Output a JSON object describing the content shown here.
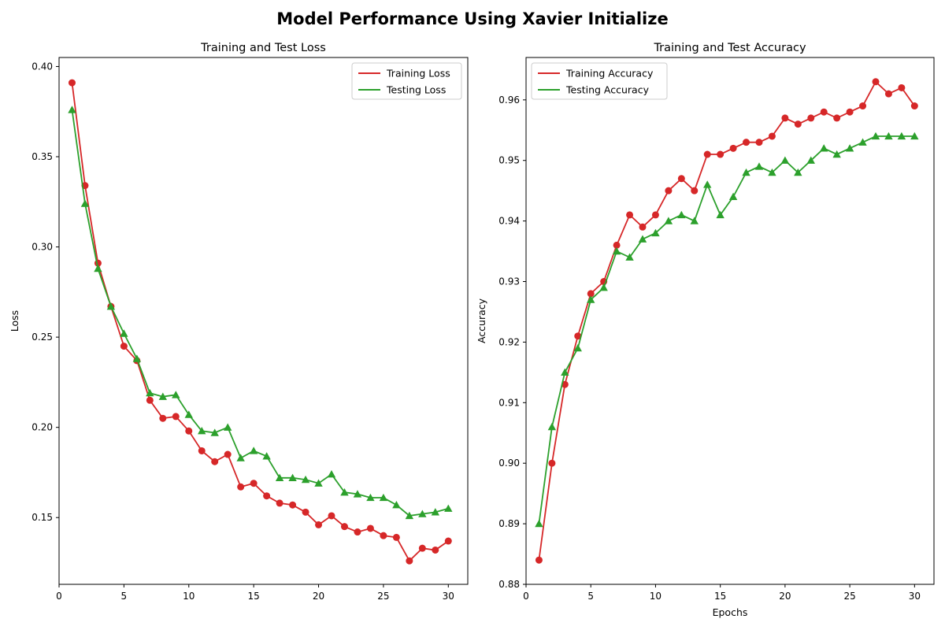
{
  "figure": {
    "title": "Model Performance Using Xavier Initialize"
  },
  "colors": {
    "training": "#d62728",
    "testing": "#2ca02c"
  },
  "chart_data": [
    {
      "type": "line",
      "title": "Training and Test Loss",
      "xlabel": "",
      "ylabel": "Loss",
      "xlim": [
        0,
        31.5
      ],
      "ylim": [
        0.113,
        0.405
      ],
      "xticks": [
        0,
        5,
        10,
        15,
        20,
        25,
        30
      ],
      "yticks": [
        0.15,
        0.2,
        0.25,
        0.3,
        0.35,
        0.4
      ],
      "ytick_labels": [
        "0.15",
        "0.20",
        "0.25",
        "0.30",
        "0.35",
        "0.40"
      ],
      "legend_placement": "top-right",
      "grid": false,
      "x": [
        1,
        2,
        3,
        4,
        5,
        6,
        7,
        8,
        9,
        10,
        11,
        12,
        13,
        14,
        15,
        16,
        17,
        18,
        19,
        20,
        21,
        22,
        23,
        24,
        25,
        26,
        27,
        28,
        29,
        30
      ],
      "series": [
        {
          "name": "Training Loss",
          "color": "#d62728",
          "marker": "circle",
          "values": [
            0.391,
            0.334,
            0.291,
            0.267,
            0.245,
            0.237,
            0.215,
            0.205,
            0.206,
            0.198,
            0.187,
            0.181,
            0.185,
            0.167,
            0.169,
            0.162,
            0.158,
            0.157,
            0.153,
            0.146,
            0.151,
            0.145,
            0.142,
            0.144,
            0.14,
            0.139,
            0.126,
            0.133,
            0.132,
            0.137
          ]
        },
        {
          "name": "Testing Loss",
          "color": "#2ca02c",
          "marker": "triangle",
          "values": [
            0.376,
            0.324,
            0.288,
            0.267,
            0.252,
            0.238,
            0.219,
            0.217,
            0.218,
            0.207,
            0.198,
            0.197,
            0.2,
            0.183,
            0.187,
            0.184,
            0.172,
            0.172,
            0.171,
            0.169,
            0.174,
            0.164,
            0.163,
            0.161,
            0.161,
            0.157,
            0.151,
            0.152,
            0.153,
            0.155
          ]
        }
      ]
    },
    {
      "type": "line",
      "title": "Training and Test Accuracy",
      "xlabel": "Epochs",
      "ylabel": "Accuracy",
      "xlim": [
        0,
        31.5
      ],
      "ylim": [
        0.88,
        0.967
      ],
      "xticks": [
        0,
        5,
        10,
        15,
        20,
        25,
        30
      ],
      "yticks": [
        0.88,
        0.89,
        0.9,
        0.91,
        0.92,
        0.93,
        0.94,
        0.95,
        0.96
      ],
      "ytick_labels": [
        "0.88",
        "0.89",
        "0.90",
        "0.91",
        "0.92",
        "0.93",
        "0.94",
        "0.95",
        "0.96"
      ],
      "legend_placement": "top-left",
      "grid": false,
      "x": [
        1,
        2,
        3,
        4,
        5,
        6,
        7,
        8,
        9,
        10,
        11,
        12,
        13,
        14,
        15,
        16,
        17,
        18,
        19,
        20,
        21,
        22,
        23,
        24,
        25,
        26,
        27,
        28,
        29,
        30
      ],
      "series": [
        {
          "name": "Training Accuracy",
          "color": "#d62728",
          "marker": "circle",
          "values": [
            0.884,
            0.9,
            0.913,
            0.921,
            0.928,
            0.93,
            0.936,
            0.941,
            0.939,
            0.941,
            0.945,
            0.947,
            0.945,
            0.951,
            0.951,
            0.952,
            0.953,
            0.953,
            0.954,
            0.957,
            0.956,
            0.957,
            0.958,
            0.957,
            0.958,
            0.959,
            0.963,
            0.961,
            0.962,
            0.959
          ]
        },
        {
          "name": "Testing Accuracy",
          "color": "#2ca02c",
          "marker": "triangle",
          "values": [
            0.89,
            0.906,
            0.915,
            0.919,
            0.927,
            0.929,
            0.935,
            0.934,
            0.937,
            0.938,
            0.94,
            0.941,
            0.94,
            0.946,
            0.941,
            0.944,
            0.948,
            0.949,
            0.948,
            0.95,
            0.948,
            0.95,
            0.952,
            0.951,
            0.952,
            0.953,
            0.954,
            0.954,
            0.954,
            0.954
          ]
        }
      ]
    }
  ]
}
